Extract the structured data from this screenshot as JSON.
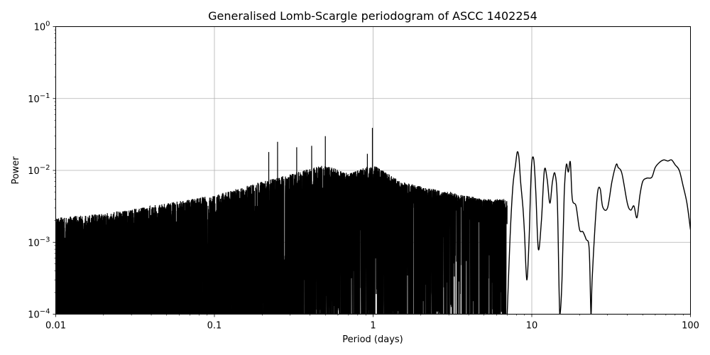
{
  "chart_data": {
    "type": "line",
    "title": "Generalised Lomb-Scargle periodogram of ASCC 1402254",
    "xlabel": "Period (days)",
    "ylabel": "Power",
    "xscale": "log",
    "yscale": "log",
    "xlim": [
      0.01,
      100
    ],
    "ylim": [
      0.0001,
      1
    ],
    "grid": true,
    "legend": null,
    "x_ticks": [
      "0.01",
      "0.1",
      "1",
      "10",
      "100"
    ],
    "y_ticks": [
      {
        "base": "10",
        "exp": "0"
      },
      {
        "base": "10",
        "exp": "−1"
      },
      {
        "base": "10",
        "exp": "−2"
      },
      {
        "base": "10",
        "exp": "−3"
      },
      {
        "base": "10",
        "exp": "−4"
      }
    ],
    "line_color": "#000000",
    "grid_color": "#b0b0b0",
    "envelope": {
      "description": "dense noisy peaks below ~3 days; approximate upper envelope (period, power)",
      "period": [
        0.01,
        0.02,
        0.05,
        0.1,
        0.2,
        0.3,
        0.5,
        0.7,
        1.0,
        1.5,
        2.0,
        3.0,
        5.0
      ],
      "power": [
        0.0022,
        0.0025,
        0.0035,
        0.0045,
        0.007,
        0.009,
        0.012,
        0.009,
        0.012,
        0.007,
        0.006,
        0.005,
        0.004
      ]
    },
    "notable_peaks": [
      {
        "period": 0.22,
        "power": 0.018
      },
      {
        "period": 0.25,
        "power": 0.025
      },
      {
        "period": 0.33,
        "power": 0.021
      },
      {
        "period": 0.41,
        "power": 0.022
      },
      {
        "period": 0.5,
        "power": 0.03
      },
      {
        "period": 0.99,
        "power": 0.039
      },
      {
        "period": 0.92,
        "power": 0.017
      },
      {
        "period": 8.2,
        "power": 0.018
      },
      {
        "period": 9.7,
        "power": 0.014
      },
      {
        "period": 17.0,
        "power": 0.012
      },
      {
        "period": 35.0,
        "power": 0.012
      },
      {
        "period": 65.0,
        "power": 0.014
      },
      {
        "period": 75.0,
        "power": 0.014
      }
    ],
    "smooth_tail": {
      "period": [
        7.0,
        7.3,
        7.6,
        7.9,
        8.1,
        8.3,
        8.5,
        8.8,
        9.0,
        9.3,
        9.6,
        9.8,
        10.0,
        10.3,
        10.6,
        11.0,
        11.5,
        12.0,
        12.5,
        13.0,
        13.5,
        14.0,
        14.5,
        15.0,
        15.5,
        16.0,
        16.5,
        17.0,
        17.5,
        18.0,
        19.0,
        20.0,
        21.0,
        22.0,
        23.0,
        23.6,
        24.0,
        25.0,
        26.0,
        27.0,
        28.0,
        30.0,
        32.0,
        34.0,
        35.0,
        37.0,
        40.0,
        42.0,
        44.0,
        46.0,
        48.0,
        50.0,
        53.0,
        57.0,
        60.0,
        64.0,
        68.0,
        72.0,
        76.0,
        80.0,
        85.0,
        90.0,
        95.0,
        100.0
      ],
      "power": [
        0.0001,
        0.0012,
        0.006,
        0.012,
        0.018,
        0.015,
        0.007,
        0.003,
        0.0013,
        0.0003,
        0.001,
        0.0045,
        0.013,
        0.014,
        0.005,
        0.0008,
        0.002,
        0.01,
        0.0075,
        0.0035,
        0.007,
        0.009,
        0.0035,
        0.0001,
        0.0003,
        0.0045,
        0.012,
        0.0095,
        0.013,
        0.004,
        0.0032,
        0.0015,
        0.0014,
        0.0011,
        0.0008,
        0.0001,
        0.0003,
        0.0016,
        0.005,
        0.0055,
        0.0031,
        0.003,
        0.007,
        0.012,
        0.011,
        0.009,
        0.0035,
        0.0028,
        0.0032,
        0.0022,
        0.0045,
        0.007,
        0.0078,
        0.008,
        0.011,
        0.013,
        0.014,
        0.0135,
        0.014,
        0.012,
        0.01,
        0.006,
        0.0035,
        0.0015
      ]
    }
  }
}
